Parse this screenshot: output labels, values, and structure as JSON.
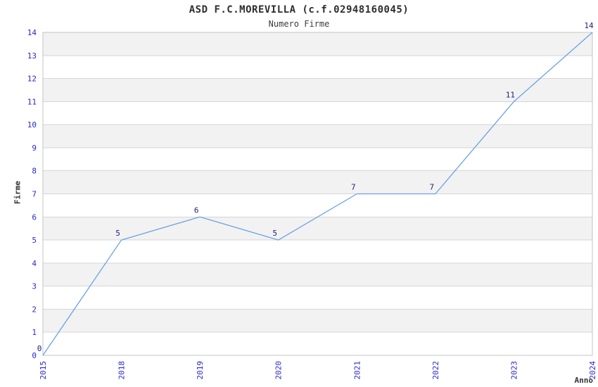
{
  "chart_data": {
    "type": "line",
    "title": "ASD F.C.MOREVILLA (c.f.02948160045)",
    "subtitle": "Numero Firme",
    "xlabel": "Anno",
    "ylabel": "Firme",
    "categories": [
      "2015",
      "2018",
      "2019",
      "2020",
      "2021",
      "2022",
      "2023",
      "2024"
    ],
    "series": [
      {
        "name": "Numero Firme",
        "values": [
          0,
          5,
          6,
          5,
          7,
          7,
          11,
          14
        ]
      }
    ],
    "ylim": [
      0,
      14
    ],
    "ytick_step": 1,
    "grid": "horizontal",
    "background_bands": "alternating gray/white, gray between odd-even values (1-2, 3-4, ... 13-14)",
    "legend_position": "none",
    "x_tick_rotation": -90,
    "data_labels_shown": true,
    "colors": {
      "line": "#6aa2e4",
      "tick_label": "#2828cd",
      "data_label": "#202080",
      "band_gray": "#f2f2f2",
      "band_white": "#ffffff",
      "gridline": "#d6d6d6",
      "plot_border": "#c4c4c4",
      "title_text": "#2e2e2e",
      "axis_label_text": "#333333"
    }
  }
}
